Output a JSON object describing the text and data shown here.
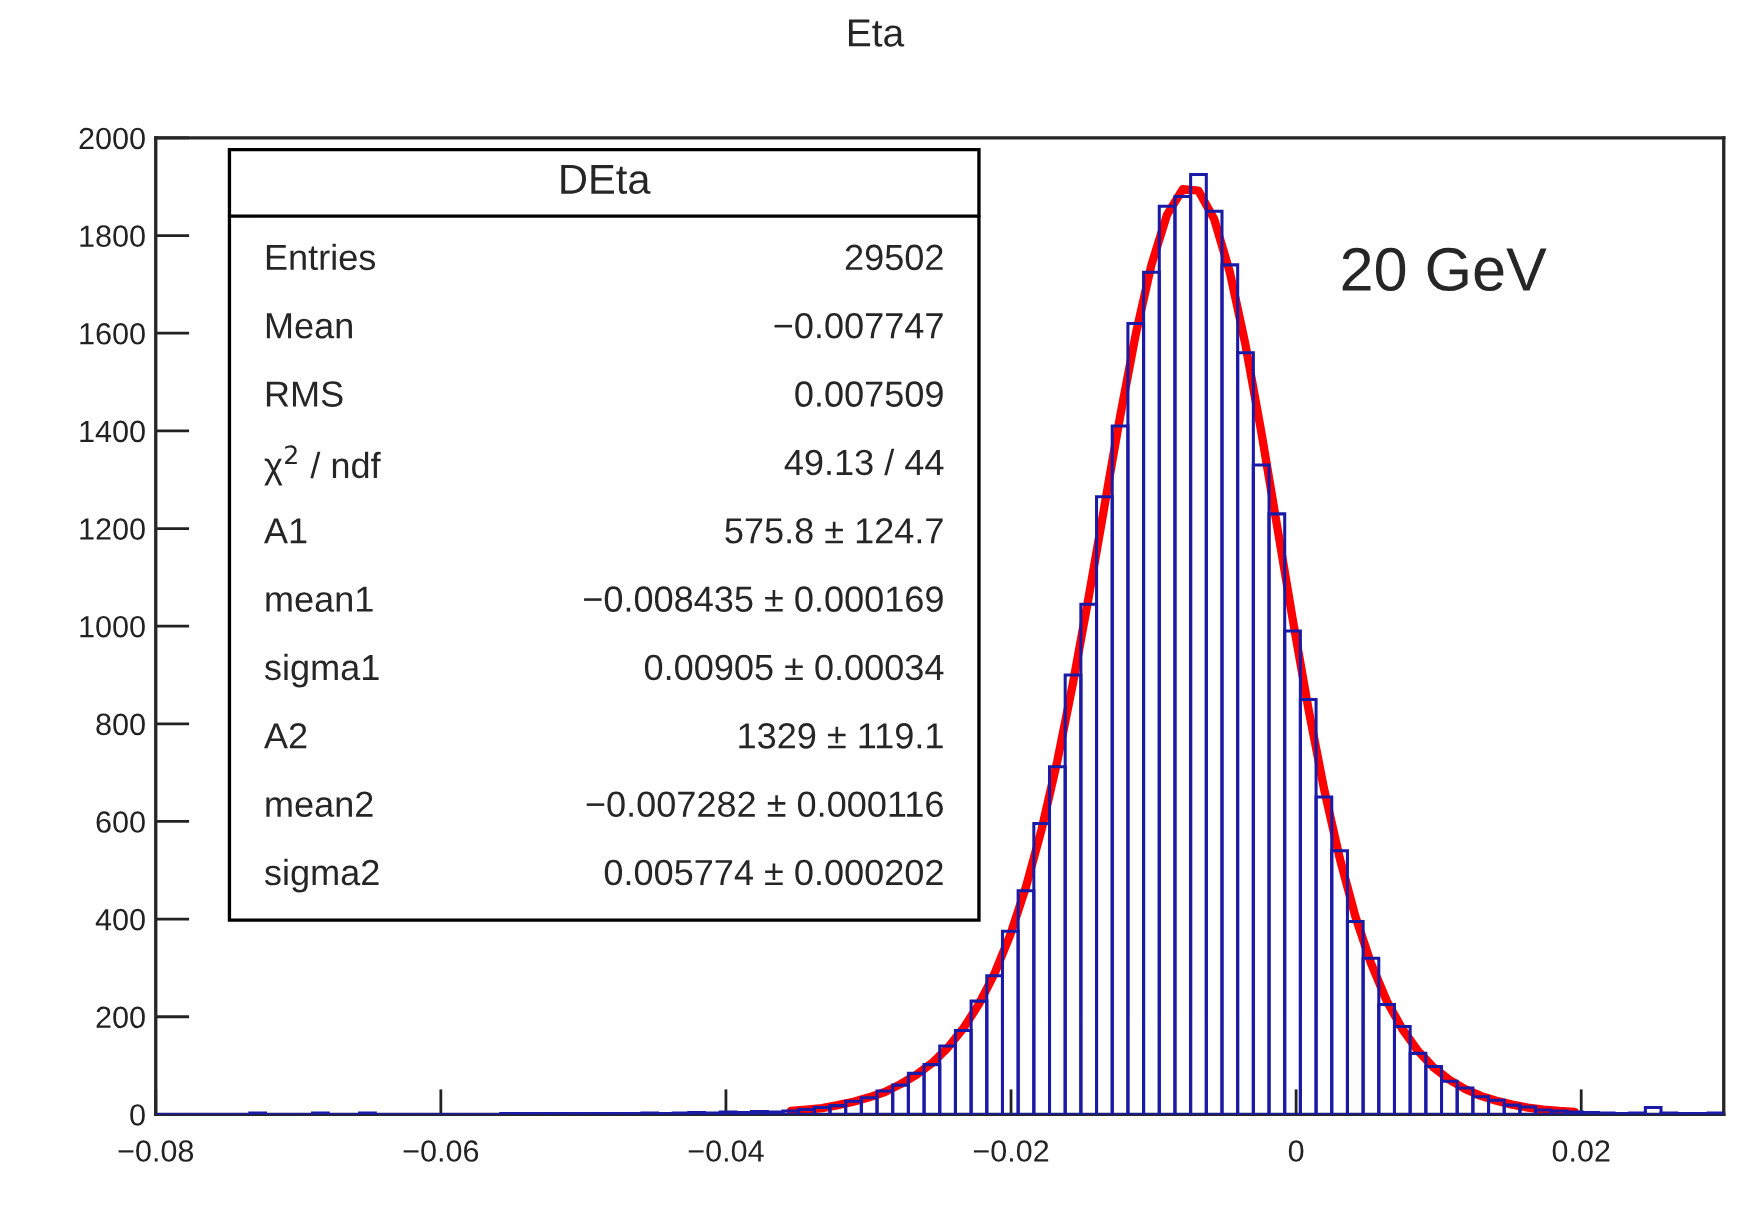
{
  "chart_data": {
    "type": "histogram",
    "title": "Eta",
    "bins": [
      -0.08,
      -0.0789,
      -0.0778,
      -0.0767,
      -0.0756,
      -0.0745,
      -0.0734,
      -0.0723,
      -0.0712,
      -0.0701,
      -0.069,
      -0.0679,
      -0.0668,
      -0.0657,
      -0.0646,
      -0.0635,
      -0.0624,
      -0.0613,
      -0.0602,
      -0.0591,
      -0.058,
      -0.0569,
      -0.0558,
      -0.0547,
      -0.0536,
      -0.0525,
      -0.0514,
      -0.0503,
      -0.0492,
      -0.0481,
      -0.047,
      -0.0459,
      -0.0448,
      -0.0437,
      -0.0426,
      -0.0415,
      -0.0404,
      -0.0393,
      -0.0382,
      -0.0371,
      -0.036,
      -0.0349,
      -0.0338,
      -0.0327,
      -0.0316,
      -0.0305,
      -0.0294,
      -0.0283,
      -0.0272,
      -0.0261,
      -0.025,
      -0.0239,
      -0.0228,
      -0.0217,
      -0.0206,
      -0.0195,
      -0.0184,
      -0.0173,
      -0.0162,
      -0.0151,
      -0.014,
      -0.0129,
      -0.0118,
      -0.0107,
      -0.0096,
      -0.0085,
      -0.0074,
      -0.0063,
      -0.0052,
      -0.0041,
      -0.003,
      -0.0019,
      -0.0008,
      0.0003,
      0.0014,
      0.0025,
      0.0036,
      0.0047,
      0.0058,
      0.0069,
      0.008,
      0.0091,
      0.0102,
      0.0113,
      0.0124,
      0.0135,
      0.0146,
      0.0157,
      0.0168,
      0.0179,
      0.019,
      0.0201,
      0.0212,
      0.0223,
      0.0234,
      0.0245,
      0.0256,
      0.0267,
      0.0278,
      0.0289,
      0.03
    ],
    "values": [
      0,
      0,
      0,
      0,
      0,
      0,
      3,
      0,
      0,
      0,
      3,
      0,
      0,
      3,
      0,
      0,
      0,
      0,
      0,
      0,
      0,
      0,
      2,
      2,
      2,
      2,
      2,
      2,
      2,
      2,
      2,
      3,
      2,
      3,
      4,
      3,
      5,
      4,
      6,
      5,
      7,
      10,
      14,
      18,
      27,
      34,
      48,
      60,
      84,
      102,
      140,
      172,
      232,
      284,
      375,
      458,
      596,
      712,
      900,
      1045,
      1265,
      1410,
      1620,
      1725,
      1860,
      1880,
      1925,
      1850,
      1740,
      1560,
      1330,
      1230,
      990,
      850,
      650,
      540,
      395,
      320,
      225,
      180,
      125,
      98,
      68,
      54,
      36,
      29,
      19,
      15,
      9,
      7,
      5,
      4,
      3,
      2,
      3,
      14,
      3,
      2,
      2,
      3
    ],
    "color": "#1a1aa6",
    "series": [
      {
        "type": "line",
        "color": "#ff0000",
        "x": [
          -0.03545,
          -0.03435,
          -0.03325,
          -0.03215,
          -0.03105,
          -0.02995,
          -0.02885,
          -0.02775,
          -0.02665,
          -0.02555,
          -0.02445,
          -0.02335,
          -0.02225,
          -0.02115,
          -0.02005,
          -0.01895,
          -0.01785,
          -0.01675,
          -0.01565,
          -0.01455,
          -0.01345,
          -0.01235,
          -0.01125,
          -0.01015,
          -0.00905,
          -0.00795,
          -0.00685,
          -0.00575,
          -0.00465,
          -0.00355,
          -0.00245,
          -0.00135,
          -0.00025,
          0.00085,
          0.00195,
          0.00305,
          0.00415,
          0.00525,
          0.00635,
          0.00745,
          0.00855,
          0.00965,
          0.01075,
          0.01185,
          0.01295,
          0.01405,
          0.01515,
          0.01625,
          0.01735,
          0.01845,
          0.01955
        ],
        "values": [
          7,
          10,
          13,
          19,
          26,
          35,
          46,
          62,
          81,
          105,
          136,
          176,
          226,
          289,
          368,
          466,
          584,
          724,
          884,
          1060,
          1245,
          1429,
          1598,
          1740,
          1843,
          1895,
          1892,
          1834,
          1725,
          1576,
          1399,
          1208,
          1016,
          833,
          668,
          526,
          406,
          310,
          233,
          175,
          130,
          96,
          71,
          52,
          38,
          28,
          20,
          14,
          10,
          7,
          5
        ]
      }
    ],
    "xlim": [
      -0.08,
      0.03
    ],
    "xticks": [
      {
        "value": -0.08,
        "label": "−0.08"
      },
      {
        "value": -0.06,
        "label": "−0.06"
      },
      {
        "value": -0.04,
        "label": "−0.04"
      },
      {
        "value": -0.02,
        "label": "−0.02"
      },
      0,
      0.02
    ],
    "ylim": [
      0,
      2000
    ],
    "yticks": [
      0,
      200,
      400,
      600,
      800,
      1000,
      1200,
      1400,
      1600,
      1800,
      2000
    ],
    "annotations": [
      "DEta",
      "Entries",
      "29502",
      "Mean",
      "−0.007747",
      "RMS",
      "0.007509",
      "χ$^{2}$ / ndf",
      "49.13 / 44",
      "A1",
      "575.8 ± 124.7",
      "mean1",
      "−0.008435 ± 0.000169",
      "sigma1",
      "0.00905 ± 0.00034",
      "A2",
      "1329 ± 119.1",
      "mean2",
      "−0.007282 ± 0.000116",
      "sigma2",
      "0.005774 ± 0.000202",
      "20 GeV"
    ]
  }
}
